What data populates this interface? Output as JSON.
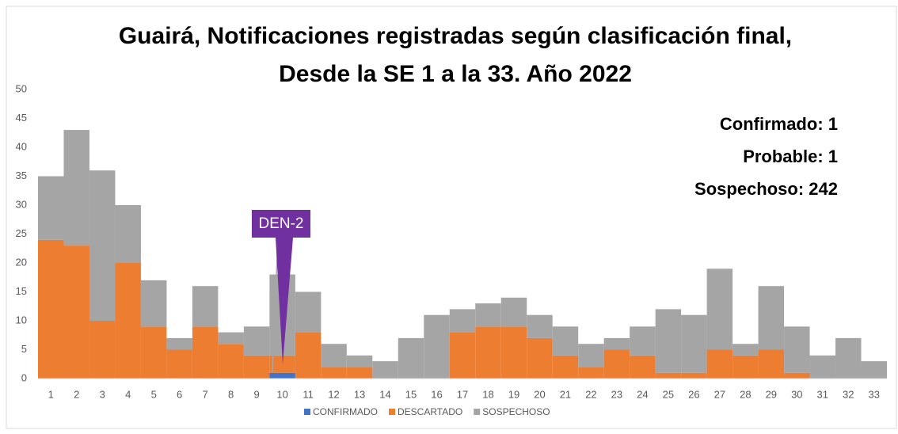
{
  "chart_data": {
    "type": "stacked_bar",
    "title": "Guairá, Notificaciones registradas según clasificación final,",
    "subtitle": "Desde la SE 1 a la 33. Año 2022",
    "categories": [
      "1",
      "2",
      "3",
      "4",
      "5",
      "6",
      "7",
      "8",
      "9",
      "10",
      "11",
      "12",
      "13",
      "14",
      "15",
      "16",
      "17",
      "18",
      "19",
      "20",
      "21",
      "22",
      "23",
      "24",
      "25",
      "26",
      "27",
      "28",
      "29",
      "30",
      "31",
      "32",
      "33"
    ],
    "series": [
      {
        "name": "CONFIRMADO",
        "color": "#4472c4",
        "values": [
          0,
          0,
          0,
          0,
          0,
          0,
          0,
          0,
          0,
          1,
          0,
          0,
          0,
          0,
          0,
          0,
          0,
          0,
          0,
          0,
          0,
          0,
          0,
          0,
          0,
          0,
          0,
          0,
          0,
          0,
          0,
          0,
          0
        ]
      },
      {
        "name": "DESCARTADO",
        "color": "#ed7d31",
        "values": [
          24,
          23,
          10,
          20,
          9,
          5,
          9,
          6,
          4,
          3,
          8,
          2,
          2,
          0,
          0,
          0,
          8,
          9,
          9,
          7,
          4,
          2,
          5,
          4,
          1,
          1,
          5,
          4,
          5,
          1,
          0,
          0,
          0
        ]
      },
      {
        "name": "SOSPECHOSO",
        "color": "#a5a5a5",
        "values": [
          11,
          20,
          26,
          10,
          8,
          2,
          7,
          2,
          5,
          14,
          7,
          4,
          2,
          3,
          7,
          11,
          4,
          4,
          5,
          4,
          5,
          4,
          2,
          5,
          11,
          10,
          14,
          2,
          11,
          8,
          4,
          7,
          3
        ]
      }
    ],
    "ylim": [
      0,
      50
    ],
    "yticks": [
      0,
      5,
      10,
      15,
      20,
      25,
      30,
      35,
      40,
      45,
      50
    ],
    "annotations": [
      "Confirmado: 1",
      "Probable: 1",
      "Sospechoso: 242"
    ],
    "callout": "DEN-2"
  }
}
